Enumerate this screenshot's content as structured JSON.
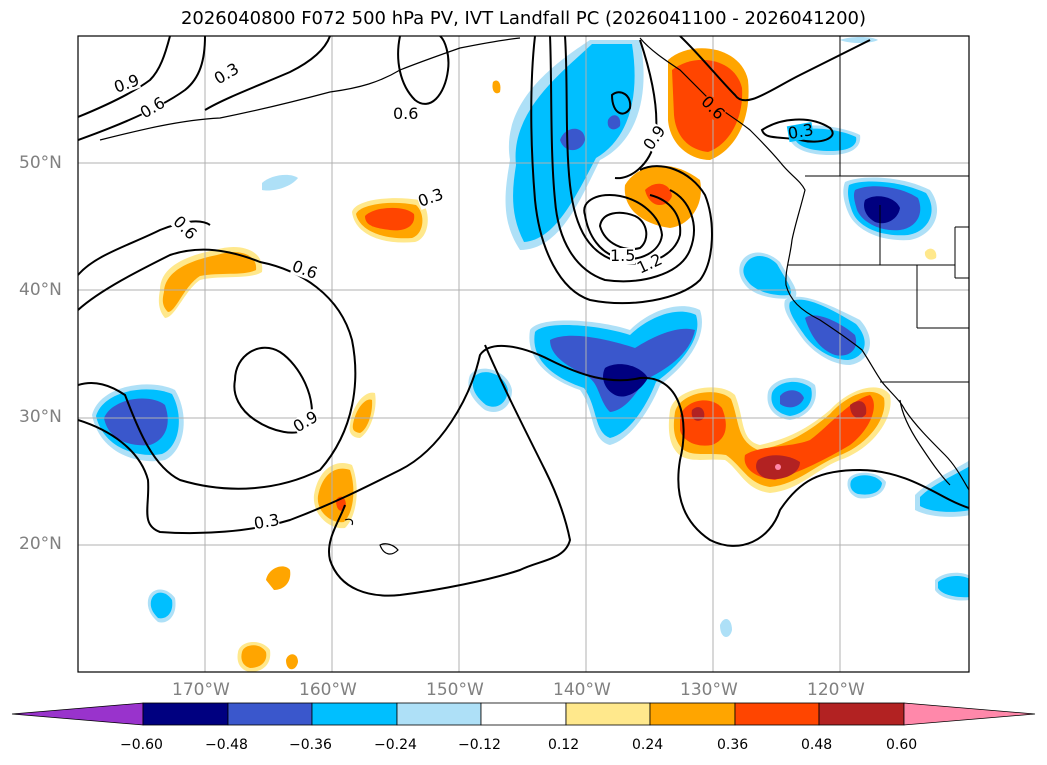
{
  "title": "2026040800 F072 500 hPa PV, IVT Landfall PC (2026041100 - 2026041200)",
  "lon_labels": [
    "170°W",
    "160°W",
    "150°W",
    "140°W",
    "130°W",
    "120°W"
  ],
  "lat_labels": [
    "50°N",
    "40°N",
    "30°N",
    "20°N"
  ],
  "contour_labels": [
    "0.9",
    "0.6",
    "0.3",
    "0.6",
    "0.3",
    "0.6",
    "0.6",
    "0.9",
    "0.3",
    "1.5",
    "1.2",
    "0.9",
    "0.6",
    "0.3"
  ],
  "colorbar": {
    "ticks": [
      "−0.60",
      "−0.48",
      "−0.36",
      "−0.24",
      "−0.12",
      "0.12",
      "0.24",
      "0.36",
      "0.48",
      "0.60"
    ],
    "colors": [
      "#9933cc",
      "#000080",
      "#3a57cc",
      "#00bfff",
      "#aee0f7",
      "#ffffff",
      "#ffe88c",
      "#ffa500",
      "#ff4500",
      "#b22222",
      "#ff88aa"
    ]
  }
}
